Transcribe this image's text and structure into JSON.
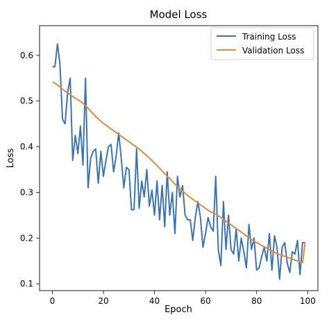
{
  "chart_data": {
    "type": "line",
    "title": "Model Loss",
    "xlabel": "Epoch",
    "ylabel": "Loss",
    "xlim": [
      -5,
      104
    ],
    "ylim": [
      0.085,
      0.665
    ],
    "xticks": [
      0,
      20,
      40,
      60,
      80,
      100
    ],
    "yticks": [
      0.1,
      0.2,
      0.3,
      0.4,
      0.5,
      0.6
    ],
    "ytick_labels": [
      "0.1",
      "0.2",
      "0.3",
      "0.4",
      "0.5",
      "0.6"
    ],
    "legend_position": "top-right",
    "grid": false,
    "x": [
      0,
      1,
      2,
      3,
      4,
      5,
      6,
      7,
      8,
      9,
      10,
      11,
      12,
      13,
      14,
      15,
      16,
      17,
      18,
      19,
      20,
      21,
      22,
      23,
      24,
      25,
      26,
      27,
      28,
      29,
      30,
      31,
      32,
      33,
      34,
      35,
      36,
      37,
      38,
      39,
      40,
      41,
      42,
      43,
      44,
      45,
      46,
      47,
      48,
      49,
      50,
      51,
      52,
      53,
      54,
      55,
      56,
      57,
      58,
      59,
      60,
      61,
      62,
      63,
      64,
      65,
      66,
      67,
      68,
      69,
      70,
      71,
      72,
      73,
      74,
      75,
      76,
      77,
      78,
      79,
      80,
      81,
      82,
      83,
      84,
      85,
      86,
      87,
      88,
      89,
      90,
      91,
      92,
      93,
      94,
      95,
      96,
      97,
      98,
      99
    ],
    "series": [
      {
        "name": "Training Loss",
        "color": "#3a75ae",
        "values": [
          0.575,
          0.575,
          0.625,
          0.58,
          0.46,
          0.45,
          0.52,
          0.55,
          0.37,
          0.425,
          0.385,
          0.445,
          0.36,
          0.55,
          0.31,
          0.375,
          0.39,
          0.395,
          0.32,
          0.39,
          0.335,
          0.37,
          0.4,
          0.405,
          0.345,
          0.38,
          0.43,
          0.375,
          0.31,
          0.355,
          0.35,
          0.262,
          0.262,
          0.395,
          0.265,
          0.325,
          0.29,
          0.35,
          0.27,
          0.305,
          0.25,
          0.325,
          0.24,
          0.315,
          0.225,
          0.345,
          0.25,
          0.3,
          0.21,
          0.335,
          0.29,
          0.315,
          0.25,
          0.24,
          0.24,
          0.195,
          0.245,
          0.28,
          0.245,
          0.18,
          0.21,
          0.245,
          0.225,
          0.215,
          0.335,
          0.175,
          0.14,
          0.28,
          0.175,
          0.25,
          0.175,
          0.165,
          0.22,
          0.15,
          0.2,
          0.17,
          0.135,
          0.23,
          0.175,
          0.2,
          0.13,
          0.135,
          0.16,
          0.18,
          0.15,
          0.21,
          0.13,
          0.205,
          0.18,
          0.11,
          0.18,
          0.19,
          0.145,
          0.125,
          0.17,
          0.165,
          0.195,
          0.12,
          0.19,
          0.19
        ]
      },
      {
        "name": "Validation Loss",
        "color": "#e0883a",
        "values": [
          0.542,
          0.539,
          0.535,
          0.531,
          0.526,
          0.522,
          0.518,
          0.514,
          0.51,
          0.506,
          0.503,
          0.499,
          0.495,
          0.49,
          0.484,
          0.478,
          0.472,
          0.466,
          0.461,
          0.456,
          0.451,
          0.447,
          0.443,
          0.439,
          0.435,
          0.431,
          0.427,
          0.423,
          0.419,
          0.415,
          0.411,
          0.407,
          0.403,
          0.399,
          0.395,
          0.39,
          0.385,
          0.38,
          0.375,
          0.37,
          0.364,
          0.359,
          0.353,
          0.347,
          0.341,
          0.335,
          0.33,
          0.324,
          0.318,
          0.313,
          0.308,
          0.303,
          0.298,
          0.293,
          0.289,
          0.285,
          0.281,
          0.277,
          0.273,
          0.269,
          0.265,
          0.261,
          0.258,
          0.255,
          0.252,
          0.249,
          0.245,
          0.241,
          0.237,
          0.233,
          0.229,
          0.225,
          0.221,
          0.217,
          0.213,
          0.209,
          0.205,
          0.201,
          0.197,
          0.193,
          0.19,
          0.187,
          0.184,
          0.181,
          0.178,
          0.175,
          0.172,
          0.169,
          0.166,
          0.164,
          0.162,
          0.16,
          0.158,
          0.156,
          0.154,
          0.152,
          0.15,
          0.148,
          0.146,
          0.19
        ]
      }
    ]
  }
}
